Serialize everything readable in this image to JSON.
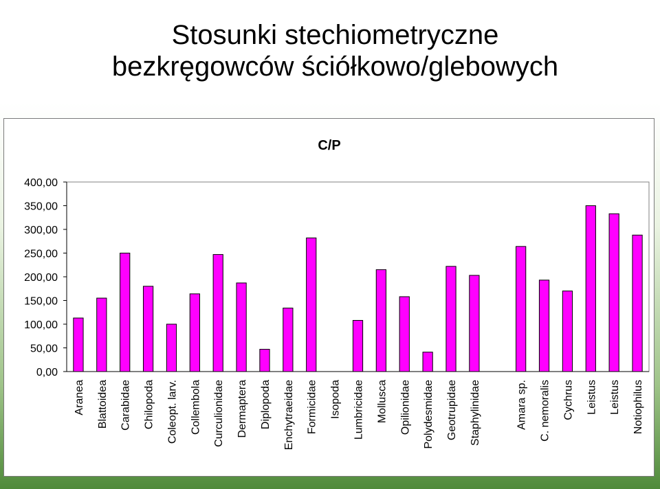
{
  "slide": {
    "title_line1": "Stosunki stechiometryczne",
    "title_line2": "bezkręgowców ściółkowo/glebowych"
  },
  "chart_data": {
    "type": "bar",
    "title": "C/P",
    "xlabel": "",
    "ylabel": "",
    "ylim": [
      0,
      400
    ],
    "yticks": [
      0,
      50,
      100,
      150,
      200,
      250,
      300,
      350,
      400
    ],
    "ytick_labels": [
      "0,00",
      "50,00",
      "100,00",
      "150,00",
      "200,00",
      "250,00",
      "300,00",
      "350,00",
      "400,00"
    ],
    "grid": false,
    "legend": "none",
    "bar_color": "#ff00ff",
    "bar_edge_color": "#000000",
    "categories": [
      "Aranea",
      "Blattoidea",
      "Carabidae",
      "Chilopoda",
      "Coleopt. larv.",
      "Collembola",
      "Curculionidae",
      "Dermaptera",
      "Diplopoda",
      "Enchytraeidae",
      "Formicidae",
      "Isopoda",
      "Lumbricidae",
      "Mollusca",
      "Opilionidae",
      "Polydesmidae",
      "Geotrupidae",
      "Staphylinidae",
      "",
      "Amara sp.",
      "C. nemoralis",
      "Cychrus",
      "Leistus",
      "Leistus",
      "Notiophilus"
    ],
    "values": [
      113,
      155,
      250,
      180,
      100,
      164,
      247,
      187,
      47,
      134,
      282,
      null,
      108,
      215,
      158,
      41,
      222,
      203,
      null,
      264,
      193,
      170,
      350,
      333,
      288
    ]
  }
}
